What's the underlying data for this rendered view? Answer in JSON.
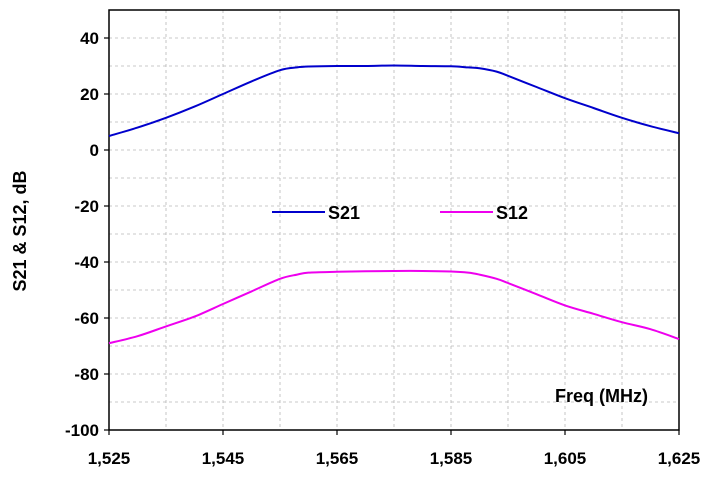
{
  "chart_data": {
    "type": "line",
    "title": "",
    "xlabel": "Freq (MHz)",
    "ylabel": "S21 & S12, dB",
    "xlim": [
      1525,
      1625
    ],
    "ylim": [
      -100,
      50
    ],
    "x_ticks": [
      1525,
      1545,
      1565,
      1585,
      1605,
      1625
    ],
    "x_tick_labels": [
      "1,525",
      "1,545",
      "1,565",
      "1,585",
      "1,605",
      "1,625"
    ],
    "y_ticks": [
      -100,
      -80,
      -60,
      -40,
      -20,
      0,
      20,
      40
    ],
    "y_tick_labels": [
      "-100",
      "-80",
      "-60",
      "-40",
      "-20",
      "0",
      "20",
      "40"
    ],
    "grid": true,
    "legend_position": "center",
    "series": [
      {
        "name": "S21",
        "color": "#0000cc",
        "x": [
          1525,
          1530,
          1535,
          1540,
          1545,
          1550,
          1555,
          1558,
          1560,
          1565,
          1570,
          1575,
          1580,
          1585,
          1588,
          1590,
          1593,
          1595,
          1600,
          1605,
          1610,
          1615,
          1620,
          1625
        ],
        "y": [
          5,
          8,
          11.5,
          15.5,
          20,
          24.5,
          28.5,
          29.5,
          29.8,
          30,
          30,
          30.2,
          30,
          29.9,
          29.5,
          29.2,
          28,
          26.5,
          22.5,
          18.5,
          15,
          11.5,
          8.5,
          6
        ]
      },
      {
        "name": "S12",
        "color": "#ee00ee",
        "x": [
          1525,
          1530,
          1535,
          1540,
          1545,
          1550,
          1555,
          1558,
          1560,
          1565,
          1570,
          1575,
          1580,
          1585,
          1588,
          1590,
          1593,
          1595,
          1600,
          1605,
          1610,
          1615,
          1620,
          1625
        ],
        "y": [
          -69,
          -66.5,
          -63,
          -59.5,
          -55,
          -50.5,
          -46,
          -44.5,
          -43.8,
          -43.5,
          -43.3,
          -43.2,
          -43.2,
          -43.4,
          -43.8,
          -44.5,
          -46,
          -47.5,
          -51.5,
          -55.5,
          -58.5,
          -61.5,
          -64,
          -67.5
        ]
      }
    ]
  }
}
